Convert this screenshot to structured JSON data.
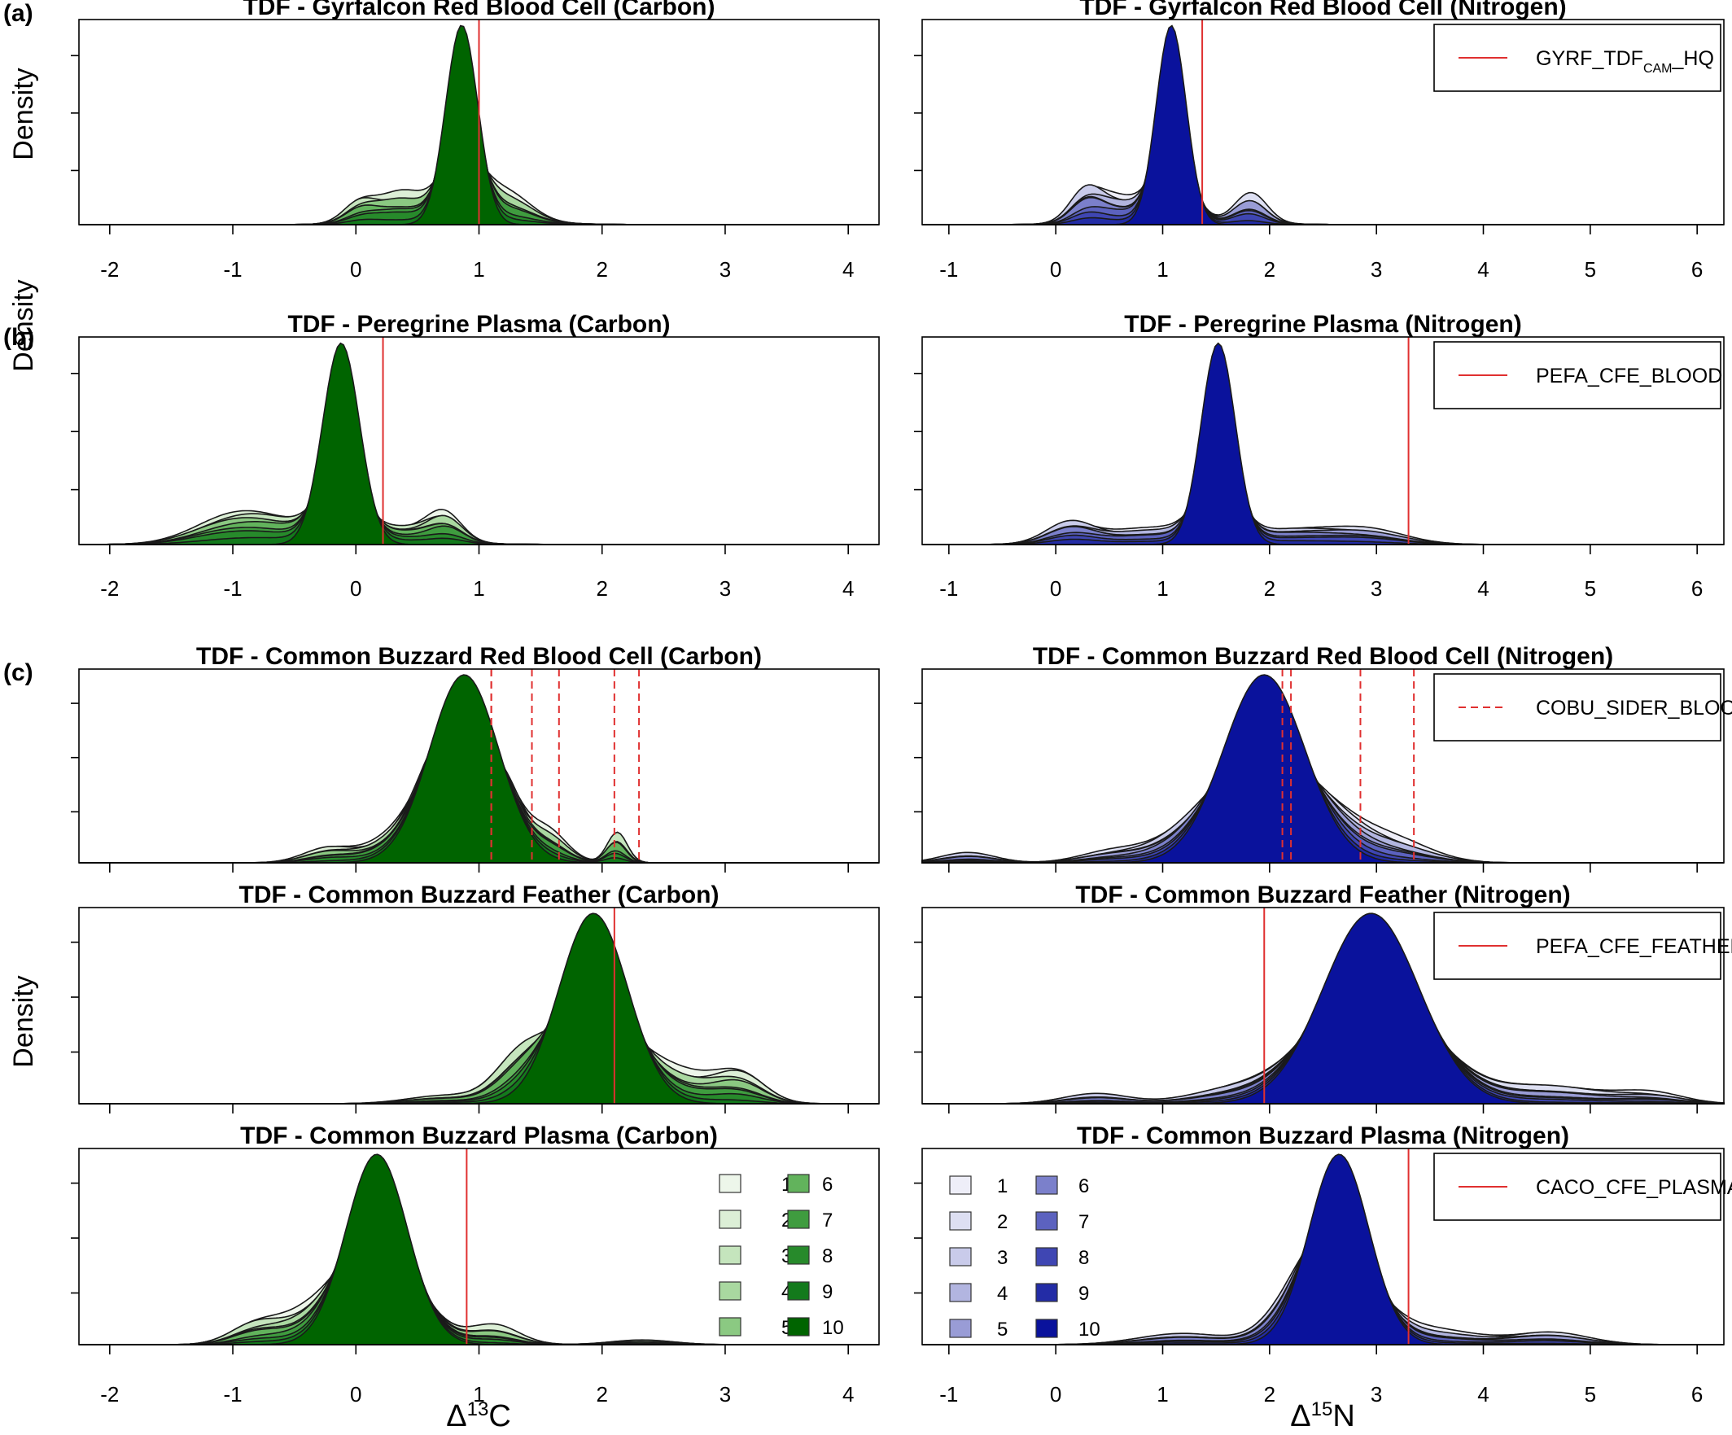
{
  "figure": {
    "panel_letters": [
      "(a)",
      "(b)",
      "(c)"
    ],
    "density_label": "Density",
    "xlabel_carbon_base": "Δ",
    "xlabel_carbon_sup": "13",
    "xlabel_carbon_elem": "C",
    "xlabel_nitrogen_base": "Δ",
    "xlabel_nitrogen_sup": "15",
    "xlabel_nitrogen_elem": "N",
    "ensemble_labels": [
      "1",
      "2",
      "3",
      "4",
      "5",
      "6",
      "7",
      "8",
      "9",
      "10"
    ],
    "colors": {
      "carbon": [
        "#edf6ea",
        "#dcefd6",
        "#c5e5bd",
        "#a9d8a0",
        "#8bc982",
        "#62b35c",
        "#3f9c3f",
        "#278a2b",
        "#137a1c",
        "#006400"
      ],
      "nitrogen": [
        "#eeeef8",
        "#dddff2",
        "#c9cbea",
        "#b2b5e0",
        "#999cd6",
        "#7b80cb",
        "#5c62bf",
        "#3f46b3",
        "#232ca6",
        "#0a129c"
      ],
      "reference_line": "#e03030"
    }
  },
  "chart_data": [
    {
      "id": "a-carbon",
      "type": "area",
      "title": "TDF - Gyrfalcon Red Blood Cell (Carbon)",
      "element": "carbon",
      "xlim": [
        -2.25,
        4.25
      ],
      "xticks": [
        -2,
        -1,
        0,
        1,
        2,
        3,
        4
      ],
      "peak": [
        0.86,
        0.13
      ],
      "alt": [
        [
          0.05,
          0.13,
          0.3
        ],
        [
          0.35,
          0.2,
          0.45
        ],
        [
          1.25,
          0.2,
          0.4
        ]
      ],
      "sd_spread": 0.55,
      "ref_lines": [
        1.0
      ],
      "ref_style": "solid",
      "legend": {
        "text": "",
        "sub": "",
        "suffix": ""
      }
    },
    {
      "id": "a-nitrogen",
      "type": "area",
      "title": "TDF - Gyrfalcon Red Blood Cell (Nitrogen)",
      "element": "nitrogen",
      "xlim": [
        -1.25,
        6.25
      ],
      "xticks": [
        -1,
        0,
        1,
        2,
        3,
        4,
        5,
        6
      ],
      "peak": [
        1.08,
        0.14
      ],
      "alt": [
        [
          0.3,
          0.15,
          0.45
        ],
        [
          1.8,
          0.15,
          0.4
        ],
        [
          0.6,
          0.2,
          0.3
        ]
      ],
      "sd_spread": 0.6,
      "ref_lines": [
        1.37
      ],
      "ref_style": "solid",
      "legend": {
        "text": "GYRF_TDF",
        "sub": "CAM",
        "suffix": "_HQ"
      }
    },
    {
      "id": "b-carbon",
      "type": "area",
      "title": "TDF - Peregrine Plasma (Carbon)",
      "element": "carbon",
      "xlim": [
        -2.25,
        4.25
      ],
      "xticks": [
        -2,
        -1,
        0,
        1,
        2,
        3,
        4
      ],
      "peak": [
        -0.12,
        0.15
      ],
      "alt": [
        [
          -0.7,
          0.35,
          0.45
        ],
        [
          -1.1,
          0.3,
          0.3
        ],
        [
          0.75,
          0.14,
          0.45
        ],
        [
          0.4,
          0.25,
          0.3
        ]
      ],
      "sd_spread": 0.7,
      "ref_lines": [
        0.22
      ],
      "ref_style": "solid",
      "legend": {
        "text": "",
        "sub": "",
        "suffix": ""
      }
    },
    {
      "id": "b-nitrogen",
      "type": "area",
      "title": "TDF - Peregrine Plasma (Nitrogen)",
      "element": "nitrogen",
      "xlim": [
        -1.25,
        6.25
      ],
      "xticks": [
        -1,
        0,
        1,
        2,
        3,
        4,
        5,
        6
      ],
      "peak": [
        1.52,
        0.16
      ],
      "alt": [
        [
          0.15,
          0.22,
          0.4
        ],
        [
          2.9,
          0.35,
          0.25
        ],
        [
          0.9,
          0.45,
          0.25
        ],
        [
          2.2,
          0.4,
          0.25
        ]
      ],
      "sd_spread": 0.75,
      "ref_lines": [
        3.3
      ],
      "ref_style": "solid",
      "legend": {
        "text": "PEFA_CFE_BLOOD",
        "sub": "",
        "suffix": ""
      }
    },
    {
      "id": "c1-carbon",
      "type": "area",
      "title": "TDF - Common Buzzard Red Blood Cell (Carbon)",
      "element": "carbon",
      "xlim": [
        -2.25,
        4.25
      ],
      "xticks": [
        -2,
        -1,
        0,
        1,
        2,
        3,
        4
      ],
      "peak": [
        0.88,
        0.28
      ],
      "alt": [
        [
          0.72,
          0.18,
          0.75
        ],
        [
          1.15,
          0.15,
          0.6
        ],
        [
          1.6,
          0.15,
          0.3
        ],
        [
          2.1,
          0.08,
          0.45
        ],
        [
          -0.2,
          0.2,
          0.2
        ],
        [
          0.3,
          0.25,
          0.2
        ]
      ],
      "sd_spread": 0.45,
      "ref_lines": [
        1.1,
        1.1,
        1.43,
        1.65,
        2.1,
        2.3
      ],
      "ref_style": "dashed",
      "legend": {
        "text": "",
        "sub": "",
        "suffix": ""
      }
    },
    {
      "id": "c1-nitrogen",
      "type": "area",
      "title": "TDF - Common Buzzard Red Blood Cell (Nitrogen)",
      "element": "nitrogen",
      "xlim": [
        -1.25,
        6.25
      ],
      "xticks": [
        -1,
        0,
        1,
        2,
        3,
        4,
        5,
        6
      ],
      "peak": [
        1.95,
        0.38
      ],
      "alt": [
        [
          -0.8,
          0.25,
          0.12
        ],
        [
          0.5,
          0.3,
          0.12
        ],
        [
          3.2,
          0.35,
          0.2
        ],
        [
          1.2,
          0.35,
          0.2
        ],
        [
          2.6,
          0.35,
          0.25
        ]
      ],
      "sd_spread": 0.5,
      "ref_lines": [
        2.12,
        2.2,
        2.85,
        3.35
      ],
      "ref_style": "dashed",
      "legend": {
        "text": "COBU_SIDER_BLOOD",
        "sub": "",
        "suffix": ""
      }
    },
    {
      "id": "c2-carbon",
      "type": "area",
      "title": "TDF - Common Buzzard Feather (Carbon)",
      "element": "carbon",
      "xlim": [
        -2.25,
        4.25
      ],
      "xticks": [
        -2,
        -1,
        0,
        1,
        2,
        3,
        4
      ],
      "peak": [
        1.93,
        0.28
      ],
      "alt": [
        [
          1.35,
          0.2,
          0.45
        ],
        [
          3.1,
          0.2,
          0.3
        ],
        [
          2.7,
          0.3,
          0.25
        ],
        [
          0.7,
          0.3,
          0.1
        ]
      ],
      "sd_spread": 0.5,
      "ref_lines": [
        2.1
      ],
      "ref_style": "solid",
      "legend": {
        "text": "",
        "sub": "",
        "suffix": ""
      }
    },
    {
      "id": "c2-nitrogen",
      "type": "area",
      "title": "TDF - Common Buzzard Feather (Nitrogen)",
      "element": "nitrogen",
      "xlim": [
        -1.25,
        6.25
      ],
      "xticks": [
        -1,
        0,
        1,
        2,
        3,
        4,
        5,
        6
      ],
      "peak": [
        2.95,
        0.45
      ],
      "alt": [
        [
          0.4,
          0.3,
          0.1
        ],
        [
          4.6,
          0.5,
          0.15
        ],
        [
          5.6,
          0.3,
          0.08
        ],
        [
          1.6,
          0.4,
          0.12
        ]
      ],
      "sd_spread": 0.6,
      "ref_lines": [
        1.95
      ],
      "ref_style": "solid",
      "legend": {
        "text": "PEFA_CFE_FEATHER",
        "sub": "",
        "suffix": ""
      }
    },
    {
      "id": "c3-carbon",
      "type": "area",
      "title": "TDF - Common Buzzard Plasma (Carbon)",
      "element": "carbon",
      "xlim": [
        -2.25,
        4.25
      ],
      "xticks": [
        -2,
        -1,
        0,
        1,
        2,
        3,
        4
      ],
      "peak": [
        0.17,
        0.25
      ],
      "alt": [
        [
          -0.8,
          0.2,
          0.2
        ],
        [
          1.1,
          0.2,
          0.18
        ],
        [
          -0.4,
          0.25,
          0.18
        ],
        [
          2.3,
          0.25,
          0.05
        ]
      ],
      "sd_spread": 0.5,
      "ref_lines": [
        0.9
      ],
      "ref_style": "solid",
      "legend": {
        "text": "",
        "sub": "",
        "suffix": ""
      }
    },
    {
      "id": "c3-nitrogen",
      "type": "area",
      "title": "TDF - Common Buzzard Plasma (Nitrogen)",
      "element": "nitrogen",
      "xlim": [
        -1.25,
        6.25
      ],
      "xticks": [
        -1,
        0,
        1,
        2,
        3,
        4,
        5,
        6
      ],
      "peak": [
        2.65,
        0.28
      ],
      "alt": [
        [
          1.2,
          0.4,
          0.15
        ],
        [
          4.6,
          0.35,
          0.15
        ],
        [
          3.6,
          0.4,
          0.15
        ],
        [
          2.3,
          0.3,
          0.45
        ]
      ],
      "sd_spread": 0.55,
      "ref_lines": [
        3.3
      ],
      "ref_style": "solid",
      "legend": {
        "text": "CACO_CFE_PLASMA",
        "sub": "",
        "suffix": ""
      }
    }
  ]
}
